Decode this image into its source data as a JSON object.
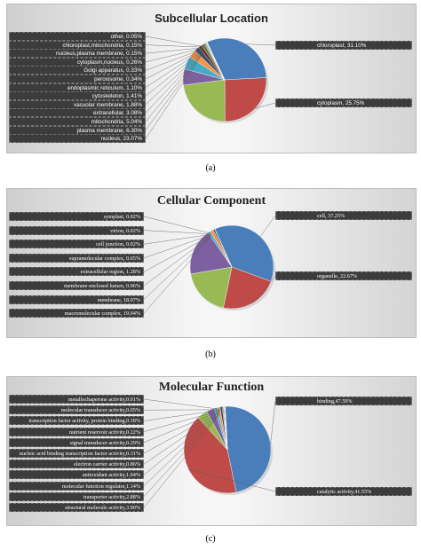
{
  "chart_data": [
    {
      "type": "pie",
      "title": "Subcellular Location",
      "categories": [
        "chloroplast",
        "cytoplasm",
        "nucleus",
        "plasma membrane",
        "mitochondria",
        "extracellular",
        "vacuolar membrane",
        "cytoskeleton",
        "endoplasmic reticulum",
        "peroxisome",
        "Golgi apparatus",
        "cytoplasm,nucleus",
        "nucleus,plasma membrane",
        "chloroplast,mitochondria",
        "other"
      ],
      "values": [
        31.1,
        25.75,
        23.07,
        6.3,
        5.04,
        3.08,
        1.88,
        1.41,
        1.1,
        0.34,
        0.33,
        0.26,
        0.15,
        0.15,
        0.05
      ],
      "labels_left": [
        "other, 0.05%",
        "chloroplast,mitochondria, 0.15%",
        "nucleus,plasma membrane, 0.15%",
        "cytoplasm,nucleus, 0.26%",
        "Golgi apparatus, 0.33%",
        "peroxisome, 0.34%",
        "endoplasmic reticulum, 1.10%",
        "cytoskeleton, 1.41%",
        "vacuolar membrane, 1.88%",
        "extracellular, 3.08%",
        "mitochondria, 5.04%",
        "plasma membrane, 6.30%",
        "nucleus, 23.07%"
      ],
      "labels_right": [
        "chloroplast, 31.10%",
        "cytoplasm, 25.75%"
      ],
      "colors": [
        "#4a7ebb",
        "#be4b48",
        "#98b954",
        "#7d60a0",
        "#46aac5",
        "#f69240",
        "#2c4d75",
        "#772c2a",
        "#5f7530",
        "#4d3b62",
        "#276a7c",
        "#b65708",
        "#729aca",
        "#cd7371",
        "#b0cb7f"
      ],
      "caption": "(a)"
    },
    {
      "type": "pie",
      "title": "Cellular Component",
      "categories": [
        "cell",
        "organelle",
        "macromolecular complex",
        "membrane",
        "membrane-enclosed lumen",
        "extracellular region",
        "supramolecular complex",
        "cell junction",
        "virion",
        "symplast"
      ],
      "values": [
        37.25,
        22.67,
        19.04,
        18.07,
        0.96,
        1.28,
        0.65,
        0.02,
        0.02,
        0.02
      ],
      "labels_left": [
        "symplast, 0.02%",
        "virion, 0.02%",
        "cell junction, 0.02%",
        "supramolecular complex, 0.65%",
        "extracellular region, 1.28%",
        "membrane-enclosed lumen, 0.96%",
        "membrane, 18.07%",
        "macromolecular complex, 19.04%"
      ],
      "labels_right": [
        "cell, 37.25%",
        "organelle, 22.67%"
      ],
      "colors": [
        "#4a7ebb",
        "#be4b48",
        "#98b954",
        "#7d60a0",
        "#46aac5",
        "#f69240",
        "#2c4d75",
        "#772c2a",
        "#5f7530",
        "#4d3b62"
      ],
      "caption": "(b)"
    },
    {
      "type": "pie",
      "title": "Molecular Function",
      "categories": [
        "binding",
        "catalytic activity",
        "structural molecule activity",
        "transporter activity",
        "molecular function regulator",
        "antioxidant activity",
        "electron carrier activity",
        "nucleic acid binding transcription factor activity",
        "signal transducer activity",
        "nutrient reservoir activity",
        "transcription factor activity, protein binding",
        "molecular transducer activity",
        "metallochaperone activity"
      ],
      "values": [
        47.59,
        41.55,
        3.9,
        2.88,
        1.14,
        1.04,
        0.86,
        0.31,
        0.29,
        0.22,
        0.18,
        0.05,
        0.01
      ],
      "labels_left": [
        "metallochaperone activity,0.01%",
        "molecular transducer activity,0.05%",
        "transcription factor activity, protein binding,0.18%",
        "nutrient reservoir activity,0.22%",
        "signal transducer activity,0.29%",
        "nucleic acid binding transcription factor activity,0.31%",
        "electron carrier activity,0.86%",
        "antioxidant activity,1.04%",
        "molecular function regulator,1.14%",
        "transporter activity,2.88%",
        "structural molecule activity,3.90%"
      ],
      "labels_right": [
        "binding,47.59%",
        "catalytic activity,41.55%"
      ],
      "colors": [
        "#4a7ebb",
        "#be4b48",
        "#98b954",
        "#7d60a0",
        "#46aac5",
        "#f69240",
        "#2c4d75",
        "#772c2a",
        "#5f7530",
        "#4d3b62",
        "#276a7c",
        "#b65708",
        "#729aca"
      ],
      "caption": "(c)"
    }
  ]
}
